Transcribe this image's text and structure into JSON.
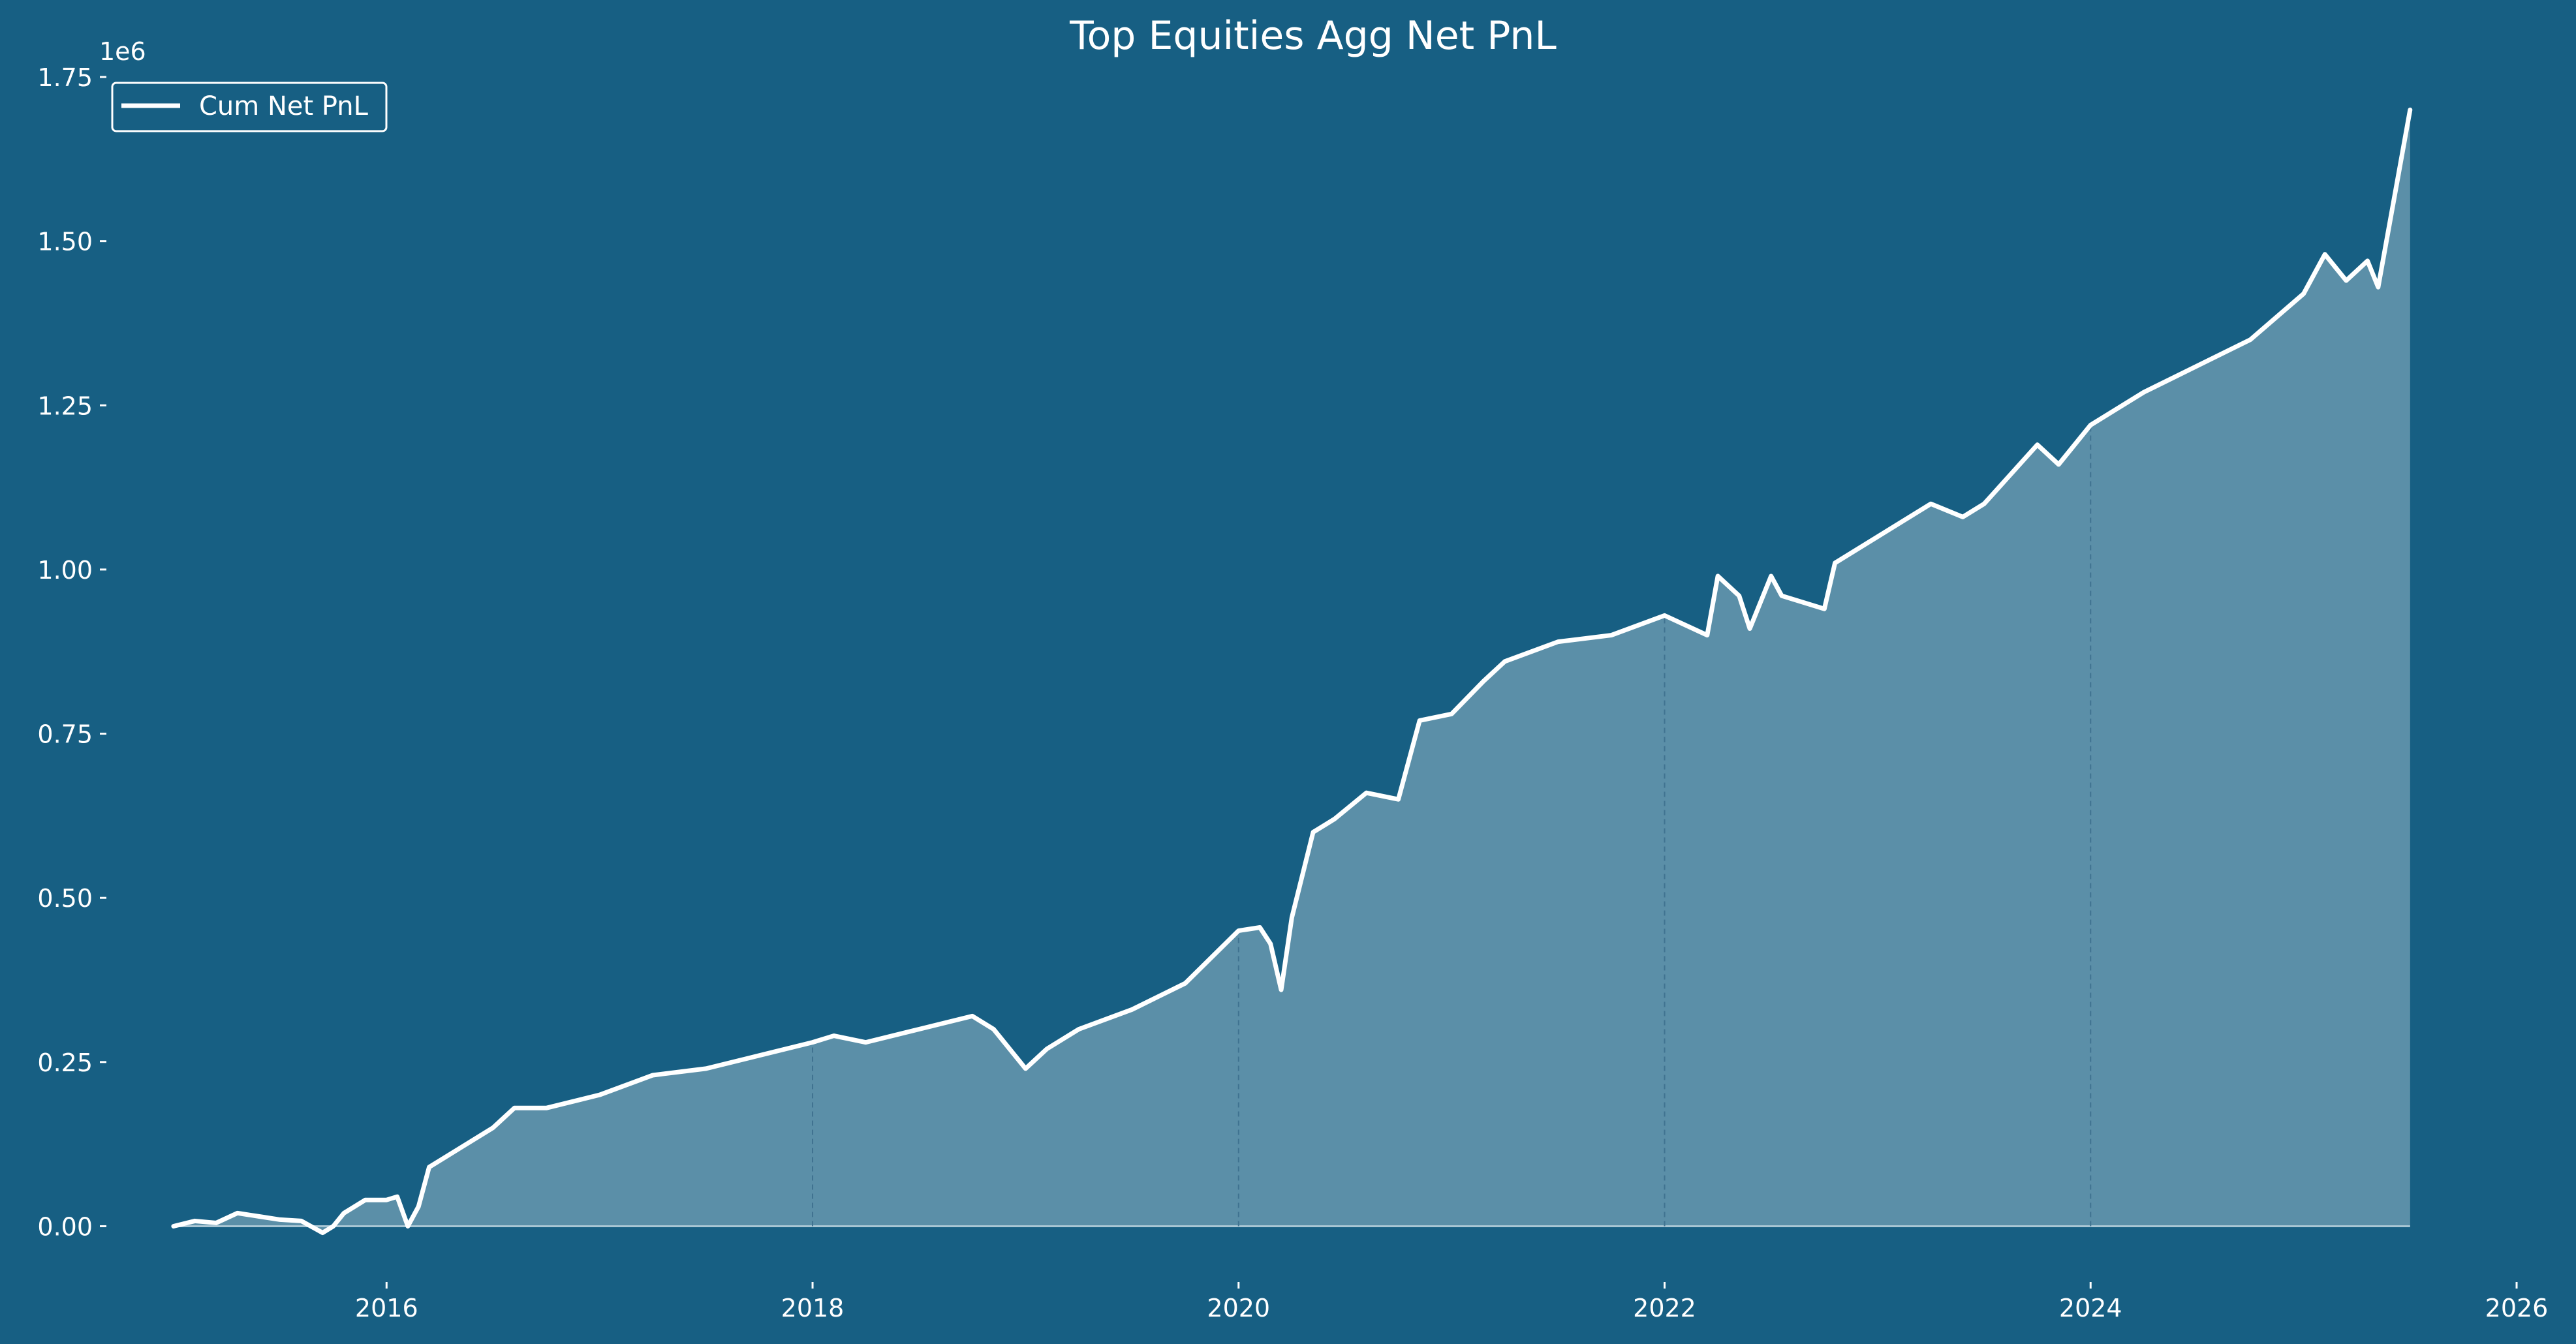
{
  "colors": {
    "background": "#175f83",
    "line": "#ffffff",
    "fill": "#5b8fa8",
    "text": "#ffffff",
    "grid": "#3f7290"
  },
  "chart_data": {
    "type": "area",
    "title": "Top Equities Agg Net PnL",
    "xlabel": "",
    "ylabel": "",
    "y_scale_label": "1e6",
    "x_unit": "year",
    "xlim": [
      2014.7,
      2026.0
    ],
    "ylim": [
      -0.08,
      1.75
    ],
    "x_ticks": [
      2016,
      2018,
      2020,
      2022,
      2024,
      2026
    ],
    "y_ticks": [
      0.0,
      0.25,
      0.5,
      0.75,
      1.0,
      1.25,
      1.5,
      1.75
    ],
    "x_tick_labels": [
      "2016",
      "2018",
      "2020",
      "2022",
      "2024",
      "2026"
    ],
    "y_tick_labels": [
      "0.00",
      "0.25",
      "0.50",
      "0.75",
      "1.00",
      "1.25",
      "1.50",
      "1.75"
    ],
    "vertical_gridlines_at": [
      2018,
      2020,
      2022,
      2024
    ],
    "legend": {
      "position": "top-left",
      "entries": [
        "Cum Net PnL"
      ]
    },
    "series": [
      {
        "name": "Cum Net PnL",
        "x": [
          2015.0,
          2015.1,
          2015.2,
          2015.3,
          2015.4,
          2015.5,
          2015.6,
          2015.7,
          2015.75,
          2015.8,
          2015.9,
          2016.0,
          2016.05,
          2016.1,
          2016.15,
          2016.2,
          2016.35,
          2016.5,
          2016.6,
          2016.75,
          2017.0,
          2017.25,
          2017.5,
          2017.75,
          2018.0,
          2018.1,
          2018.25,
          2018.5,
          2018.75,
          2018.85,
          2019.0,
          2019.1,
          2019.25,
          2019.5,
          2019.75,
          2020.0,
          2020.1,
          2020.15,
          2020.2,
          2020.25,
          2020.35,
          2020.45,
          2020.6,
          2020.75,
          2020.85,
          2021.0,
          2021.15,
          2021.25,
          2021.5,
          2021.75,
          2022.0,
          2022.2,
          2022.25,
          2022.35,
          2022.4,
          2022.5,
          2022.55,
          2022.75,
          2022.8,
          2022.9,
          2023.0,
          2023.25,
          2023.4,
          2023.5,
          2023.75,
          2023.85,
          2024.0,
          2024.25,
          2024.5,
          2024.75,
          2025.0,
          2025.1,
          2025.2,
          2025.3,
          2025.35,
          2025.5
        ],
        "values": [
          0.0,
          0.008,
          0.005,
          0.02,
          0.015,
          0.01,
          0.008,
          -0.01,
          0.0,
          0.02,
          0.04,
          0.04,
          0.045,
          0.0,
          0.03,
          0.09,
          0.12,
          0.15,
          0.18,
          0.18,
          0.2,
          0.23,
          0.24,
          0.26,
          0.28,
          0.29,
          0.28,
          0.3,
          0.32,
          0.3,
          0.24,
          0.27,
          0.3,
          0.33,
          0.37,
          0.45,
          0.455,
          0.43,
          0.36,
          0.47,
          0.6,
          0.62,
          0.66,
          0.65,
          0.77,
          0.78,
          0.83,
          0.86,
          0.89,
          0.9,
          0.93,
          0.9,
          0.99,
          0.96,
          0.91,
          0.99,
          0.96,
          0.94,
          1.01,
          1.03,
          1.05,
          1.1,
          1.08,
          1.1,
          1.19,
          1.16,
          1.22,
          1.27,
          1.31,
          1.35,
          1.42,
          1.48,
          1.44,
          1.47,
          1.43,
          1.7
        ]
      }
    ]
  }
}
